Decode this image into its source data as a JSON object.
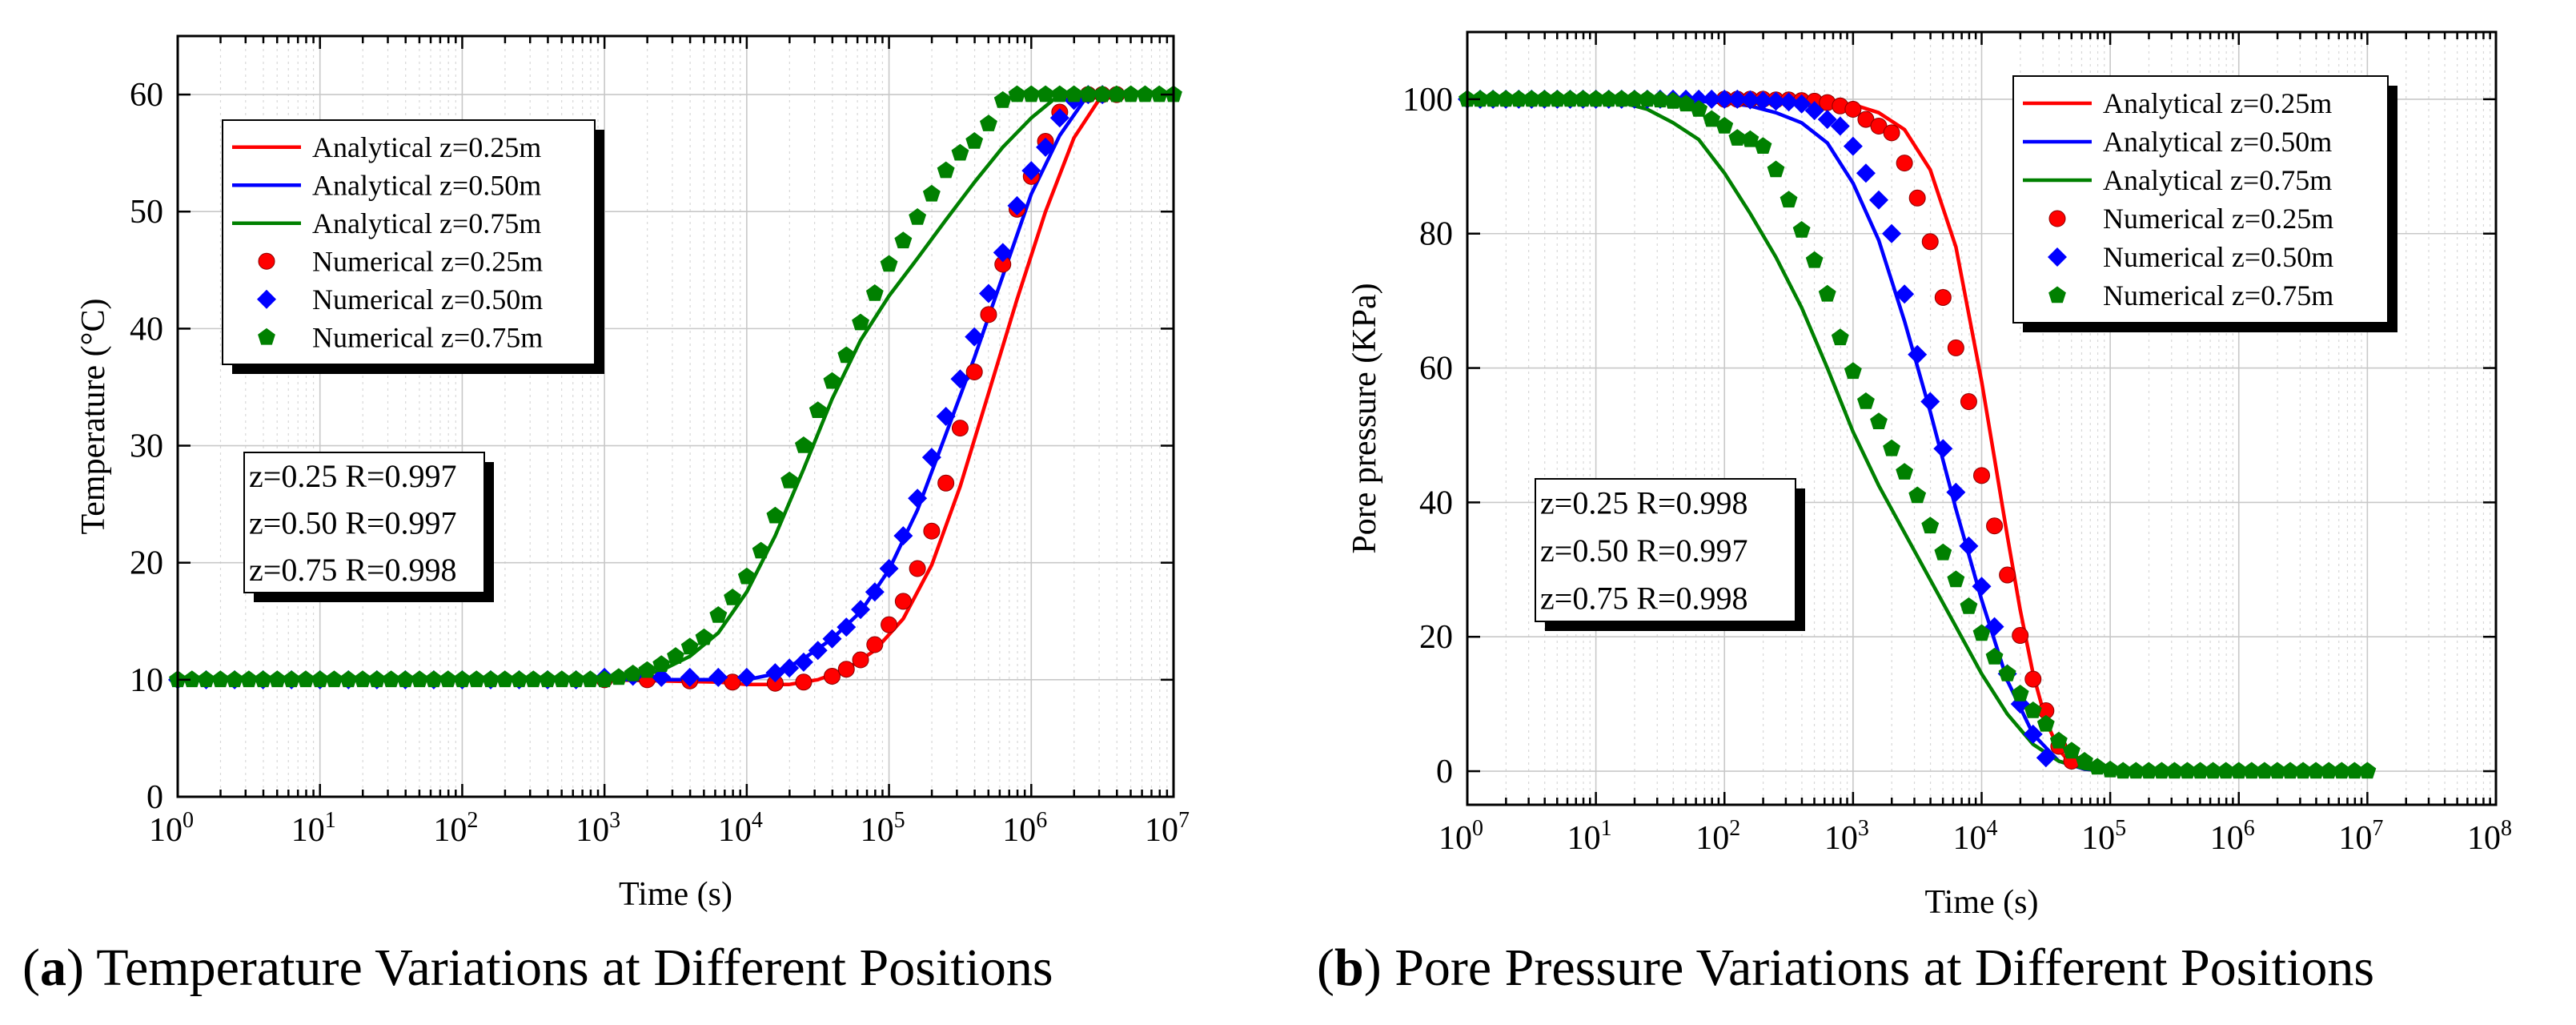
{
  "figure": {
    "caption_a_letter": "a",
    "caption_a_text": " Temperature Variations at Different Positions",
    "caption_b_letter": "b",
    "caption_b_text": " Pore Pressure Variations at Different Positions"
  },
  "chart_data": [
    {
      "type": "line",
      "panel": "a",
      "title": "Temperature Variations at Different Positions",
      "xlabel": "Time (s)",
      "ylabel": "Temperature (°C)",
      "xscale": "log",
      "xlim_exp": [
        0,
        7
      ],
      "ylim": [
        0,
        65
      ],
      "yticks": [
        0,
        10,
        20,
        30,
        40,
        50,
        60
      ],
      "grid": true,
      "legend": [
        "Analytical  z=0.25m",
        "Analytical  z=0.50m",
        "Analytical  z=0.75m",
        "Numerical  z=0.25m",
        "Numerical  z=0.50m",
        "Numerical  z=0.75m"
      ],
      "legend_position": "top-left",
      "annotation": [
        "z=0.25  R=0.997",
        "z=0.50  R=0.997",
        "z=0.75  R=0.998"
      ],
      "series": [
        {
          "name": "Analytical  z=0.25m",
          "style": "line",
          "color": "#ff0000",
          "logx": [
            0,
            1,
            2,
            3,
            3.8,
            4,
            4.3,
            4.5,
            4.7,
            4.9,
            5.1,
            5.3,
            5.5,
            5.7,
            5.9,
            6.1,
            6.3,
            6.5,
            7
          ],
          "y": [
            10,
            10,
            10,
            10,
            9.8,
            9.6,
            9.6,
            10,
            10.9,
            12.5,
            15.2,
            19.8,
            26.5,
            34.5,
            42.5,
            50,
            56.3,
            60,
            60
          ]
        },
        {
          "name": "Analytical  z=0.50m",
          "style": "line",
          "color": "#0000ff",
          "logx": [
            0,
            1,
            2,
            3,
            3.5,
            3.8,
            4,
            4.2,
            4.4,
            4.6,
            4.8,
            5,
            5.2,
            5.4,
            5.6,
            5.8,
            6,
            6.2,
            6.4,
            7
          ],
          "y": [
            10,
            10,
            10,
            10,
            10,
            10,
            10,
            10.5,
            11.8,
            13.5,
            15.8,
            19.4,
            24.5,
            31,
            37.5,
            44.5,
            51.5,
            56.5,
            60,
            60
          ]
        },
        {
          "name": "Analytical  z=0.75m",
          "style": "line",
          "color": "#008000",
          "logx": [
            0,
            1,
            2,
            3,
            3.2,
            3.4,
            3.6,
            3.8,
            4,
            4.2,
            4.4,
            4.6,
            4.8,
            5,
            5.2,
            5.4,
            5.6,
            5.8,
            6,
            6.2,
            6.4,
            7
          ],
          "y": [
            10,
            10,
            10,
            10,
            10.2,
            10.8,
            12,
            14,
            17.5,
            22.3,
            28,
            34,
            39,
            42.8,
            46,
            49.3,
            52.5,
            55.5,
            58,
            60,
            60,
            60
          ]
        },
        {
          "name": "Numerical  z=0.25m",
          "style": "sphere",
          "color": "#ff0000",
          "logx": [
            3,
            3.3,
            3.6,
            3.9,
            4.2,
            4.4,
            4.6,
            4.7,
            4.8,
            4.9,
            5,
            5.1,
            5.2,
            5.3,
            5.4,
            5.5,
            5.6,
            5.7,
            5.8,
            5.9,
            6,
            6.1,
            6.2,
            6.3,
            6.4,
            6.5,
            6.6
          ],
          "y": [
            10,
            10,
            9.9,
            9.8,
            9.7,
            9.8,
            10.3,
            10.9,
            11.7,
            13,
            14.7,
            16.7,
            19.5,
            22.7,
            26.8,
            31.5,
            36.3,
            41.2,
            45.5,
            50.2,
            53,
            56,
            58.5,
            59.8,
            60,
            60,
            60
          ]
        },
        {
          "name": "Numerical  z=0.50m",
          "style": "diamond",
          "color": "#0000ff",
          "logx": [
            0,
            0.2,
            0.4,
            0.6,
            0.8,
            1,
            1.2,
            1.4,
            1.6,
            1.8,
            2,
            2.2,
            2.4,
            2.6,
            2.8,
            3,
            3.2,
            3.4,
            3.6,
            3.8,
            4,
            4.2,
            4.3,
            4.4,
            4.5,
            4.6,
            4.7,
            4.8,
            4.9,
            5,
            5.1,
            5.2,
            5.3,
            5.4,
            5.5,
            5.6,
            5.7,
            5.8,
            5.9,
            6,
            6.1,
            6.2,
            6.3,
            6.4,
            6.5
          ],
          "y": [
            10,
            10,
            10,
            10,
            10,
            10,
            10,
            10,
            10,
            10,
            10,
            10,
            10,
            10,
            10,
            10.2,
            10.3,
            10.2,
            10.2,
            10.2,
            10.2,
            10.6,
            11,
            11.5,
            12.5,
            13.5,
            14.5,
            16,
            17.5,
            19.5,
            22.3,
            25.5,
            29,
            32.5,
            35.7,
            39.3,
            43,
            46.5,
            50.5,
            53.5,
            55.5,
            58,
            59.5,
            60,
            60
          ]
        },
        {
          "name": "Numerical  z=0.75m",
          "style": "pentagon",
          "color": "#008000",
          "logx": [
            0,
            0.1,
            0.2,
            0.3,
            0.4,
            0.5,
            0.6,
            0.7,
            0.8,
            0.9,
            1,
            1.1,
            1.2,
            1.3,
            1.4,
            1.5,
            1.6,
            1.7,
            1.8,
            1.9,
            2,
            2.1,
            2.2,
            2.3,
            2.4,
            2.5,
            2.6,
            2.7,
            2.8,
            2.9,
            3,
            3.1,
            3.2,
            3.3,
            3.4,
            3.5,
            3.6,
            3.7,
            3.8,
            3.9,
            4,
            4.1,
            4.2,
            4.3,
            4.4,
            4.5,
            4.6,
            4.7,
            4.8,
            4.9,
            5,
            5.1,
            5.2,
            5.3,
            5.4,
            5.5,
            5.6,
            5.7,
            5.8,
            5.9,
            6,
            6.1,
            6.2,
            6.3,
            6.4,
            6.5,
            6.6,
            6.7,
            6.8,
            6.9,
            7
          ],
          "y": [
            10,
            10,
            10,
            10,
            10,
            10,
            10,
            10,
            10,
            10,
            10,
            10,
            10,
            10,
            10,
            10,
            10,
            10,
            10,
            10,
            10,
            10,
            10,
            10,
            10,
            10,
            10,
            10,
            10,
            10,
            10,
            10.2,
            10.5,
            10.8,
            11.3,
            12,
            12.8,
            13.6,
            15.5,
            17,
            18.8,
            21,
            24,
            27,
            30,
            33,
            35.5,
            37.7,
            40.5,
            43,
            45.5,
            47.5,
            49.5,
            51.5,
            53.5,
            55,
            56,
            57.5,
            59.5,
            60,
            60,
            60,
            60,
            60,
            60,
            60,
            60,
            60,
            60,
            60,
            60
          ]
        }
      ]
    },
    {
      "type": "line",
      "panel": "b",
      "title": "Pore Pressure Variations at Different Positions",
      "xlabel": "Time (s)",
      "ylabel": "Pore pressure (KPa)",
      "xscale": "log",
      "xlim_exp": [
        0,
        8
      ],
      "ylim": [
        -5,
        110
      ],
      "yticks": [
        0,
        20,
        40,
        60,
        80,
        100
      ],
      "grid": true,
      "legend": [
        "Analytical  z=0.25m",
        "Analytical  z=0.50m",
        "Analytical  z=0.75m",
        "Numerical  z=0.25m",
        "Numerical  z=0.50m",
        "Numerical  z=0.75m"
      ],
      "legend_position": "top-right",
      "annotation": [
        "z=0.25  R=0.998",
        "z=0.50  R=0.997",
        "z=0.75  R=0.998"
      ],
      "series": [
        {
          "name": "Analytical  z=0.25m",
          "style": "line",
          "color": "#ff0000",
          "logx": [
            0,
            1,
            2,
            2.5,
            2.8,
            3,
            3.2,
            3.4,
            3.6,
            3.8,
            4,
            4.1,
            4.2,
            4.3,
            4.4,
            4.5,
            4.6,
            4.7,
            4.8,
            5,
            5.5,
            7
          ],
          "y": [
            100,
            100,
            100,
            99.9,
            99.7,
            99.2,
            98,
            95.5,
            89.5,
            78,
            58,
            46.5,
            35,
            24,
            14.5,
            7.5,
            3.2,
            1,
            0.3,
            0,
            0,
            0
          ]
        },
        {
          "name": "Analytical  z=0.50m",
          "style": "line",
          "color": "#0000ff",
          "logx": [
            0,
            1,
            1.5,
            2,
            2.2,
            2.4,
            2.6,
            2.8,
            3,
            3.2,
            3.4,
            3.6,
            3.8,
            4,
            4.2,
            4.4,
            4.6,
            4.8,
            5,
            5.5,
            7
          ],
          "y": [
            100,
            100,
            100,
            99.5,
            99,
            98,
            96.5,
            93.5,
            87.5,
            79,
            67,
            53.5,
            39,
            25.5,
            13.5,
            5.5,
            1.5,
            0.3,
            0,
            0,
            0
          ]
        },
        {
          "name": "Analytical  z=0.75m",
          "style": "line",
          "color": "#008000",
          "logx": [
            0,
            1,
            1.2,
            1.4,
            1.6,
            1.8,
            2,
            2.2,
            2.4,
            2.6,
            2.8,
            3,
            3.2,
            3.4,
            3.6,
            3.8,
            4,
            4.2,
            4.4,
            4.6,
            4.8,
            5,
            5.5,
            7
          ],
          "y": [
            100,
            100,
            99.5,
            98.5,
            96.5,
            94,
            89,
            83,
            76.5,
            69,
            60,
            50.5,
            42.5,
            35.5,
            28.5,
            21.5,
            14.5,
            8.5,
            4,
            1.5,
            0.4,
            0,
            0,
            0
          ]
        },
        {
          "name": "Numerical  z=0.25m",
          "style": "sphere",
          "color": "#ff0000",
          "logx": [
            2,
            2.1,
            2.2,
            2.3,
            2.4,
            2.5,
            2.6,
            2.7,
            2.8,
            2.9,
            3,
            3.1,
            3.2,
            3.3,
            3.4,
            3.5,
            3.6,
            3.7,
            3.8,
            3.9,
            4,
            4.1,
            4.2,
            4.3,
            4.4,
            4.5,
            4.6,
            4.7
          ],
          "y": [
            100,
            100,
            100,
            100,
            99.9,
            99.9,
            99.8,
            99.7,
            99.5,
            99,
            98.5,
            97,
            96,
            95,
            90.5,
            85.3,
            78.8,
            70.5,
            63,
            55,
            44,
            36.5,
            29.2,
            20.2,
            13.7,
            9,
            3.7,
            1.5
          ]
        },
        {
          "name": "Numerical  z=0.50m",
          "style": "diamond",
          "color": "#0000ff",
          "logx": [
            0,
            0.1,
            0.2,
            0.3,
            0.4,
            0.5,
            0.6,
            0.7,
            0.8,
            0.9,
            1,
            1.1,
            1.2,
            1.3,
            1.4,
            1.5,
            1.6,
            1.7,
            1.8,
            1.9,
            2,
            2.1,
            2.2,
            2.3,
            2.4,
            2.5,
            2.6,
            2.7,
            2.8,
            2.9,
            3,
            3.1,
            3.2,
            3.3,
            3.4,
            3.5,
            3.6,
            3.7,
            3.8,
            3.9,
            4,
            4.1,
            4.2,
            4.3,
            4.4,
            4.5
          ],
          "y": [
            100,
            100,
            100,
            100,
            100,
            100,
            100,
            100,
            100,
            100,
            100,
            100,
            100,
            100,
            100,
            100,
            100,
            100,
            100,
            100,
            100,
            100,
            99.9,
            99.8,
            99.7,
            99.6,
            99.3,
            98.3,
            97,
            96,
            93,
            89,
            85,
            80,
            71,
            62,
            55,
            48,
            41.5,
            33.5,
            27.5,
            21.5,
            14.5,
            10,
            5.5,
            2
          ]
        },
        {
          "name": "Numerical  z=0.75m",
          "style": "pentagon",
          "color": "#008000",
          "logx": [
            0,
            0.1,
            0.2,
            0.3,
            0.4,
            0.5,
            0.6,
            0.7,
            0.8,
            0.9,
            1,
            1.1,
            1.2,
            1.3,
            1.4,
            1.5,
            1.6,
            1.7,
            1.8,
            1.9,
            2,
            2.1,
            2.2,
            2.3,
            2.4,
            2.5,
            2.6,
            2.7,
            2.8,
            2.9,
            3,
            3.1,
            3.2,
            3.3,
            3.4,
            3.5,
            3.6,
            3.7,
            3.8,
            3.9,
            4,
            4.1,
            4.2,
            4.3,
            4.4,
            4.5,
            4.6,
            4.7,
            4.8,
            4.9,
            5,
            5.1,
            5.2,
            5.3,
            5.4,
            5.5,
            5.6,
            5.7,
            5.8,
            5.9,
            6,
            6.1,
            6.2,
            6.3,
            6.4,
            6.5,
            6.6,
            6.7,
            6.8,
            6.9,
            7
          ],
          "y": [
            100,
            100,
            100,
            100,
            100,
            100,
            100,
            100,
            100,
            100,
            100,
            100,
            100,
            100,
            100,
            99.9,
            99.7,
            99.3,
            98.5,
            97,
            96,
            94.2,
            94,
            93,
            89.5,
            85,
            80.5,
            76,
            71,
            64.5,
            59.5,
            55,
            52,
            48,
            44.5,
            41,
            36.5,
            32.5,
            28.5,
            24.5,
            20.5,
            17,
            14.5,
            11.5,
            9,
            7,
            4.5,
            3,
            1.5,
            0.6,
            0.2,
            0,
            0,
            0,
            0,
            0,
            0,
            0,
            0,
            0,
            0,
            0,
            0,
            0,
            0,
            0,
            0,
            0,
            0,
            0,
            0
          ]
        }
      ]
    }
  ]
}
